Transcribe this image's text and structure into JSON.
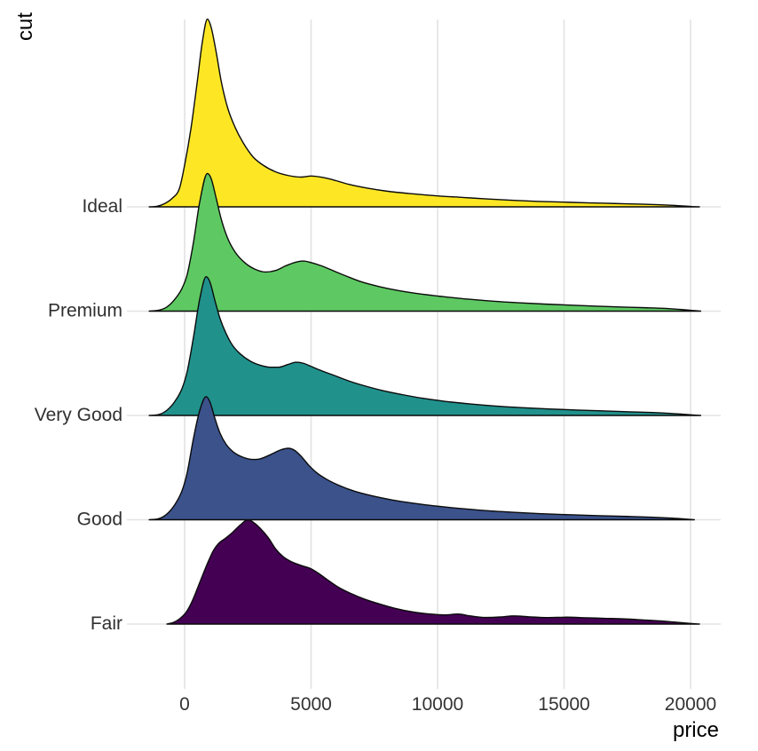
{
  "chart_data": {
    "type": "area",
    "variant": "ridgeline-density",
    "title": "",
    "xlabel": "price",
    "ylabel": "cut",
    "x_ticks": [
      0,
      5000,
      10000,
      15000,
      20000
    ],
    "x_tick_labels": [
      "0",
      "5000",
      "10000",
      "15000",
      "20000"
    ],
    "xlim": [
      -2280,
      21180
    ],
    "grid": "vertical-major-x-and-row-baselines",
    "legend": "none",
    "gridline_color": "#e3e3e3",
    "outline_color": "#0b0b0b",
    "categories": [
      "Ideal",
      "Premium",
      "Very Good",
      "Good",
      "Fair"
    ],
    "height_units": "multiples of row spacing",
    "series": [
      {
        "name": "Ideal",
        "fill": "#FDE725",
        "points": [
          [
            -1400,
            0
          ],
          [
            -1100,
            0.005
          ],
          [
            -800,
            0.03
          ],
          [
            -500,
            0.08
          ],
          [
            -200,
            0.18
          ],
          [
            0,
            0.4
          ],
          [
            250,
            0.75
          ],
          [
            500,
            1.2
          ],
          [
            700,
            1.58
          ],
          [
            900,
            1.8
          ],
          [
            1050,
            1.72
          ],
          [
            1250,
            1.48
          ],
          [
            1450,
            1.2
          ],
          [
            1700,
            0.95
          ],
          [
            2000,
            0.76
          ],
          [
            2300,
            0.62
          ],
          [
            2700,
            0.48
          ],
          [
            3100,
            0.4
          ],
          [
            3600,
            0.335
          ],
          [
            4100,
            0.3
          ],
          [
            4600,
            0.285
          ],
          [
            5000,
            0.295
          ],
          [
            5500,
            0.28
          ],
          [
            6000,
            0.25
          ],
          [
            6500,
            0.215
          ],
          [
            7200,
            0.18
          ],
          [
            8000,
            0.15
          ],
          [
            9000,
            0.125
          ],
          [
            10000,
            0.105
          ],
          [
            11000,
            0.09
          ],
          [
            12000,
            0.075
          ],
          [
            13000,
            0.062
          ],
          [
            14000,
            0.052
          ],
          [
            15000,
            0.045
          ],
          [
            16000,
            0.038
          ],
          [
            17000,
            0.032
          ],
          [
            18000,
            0.026
          ],
          [
            18800,
            0.02
          ],
          [
            19400,
            0.013
          ],
          [
            19900,
            0.006
          ],
          [
            20200,
            0.001
          ],
          [
            20350,
            0
          ]
        ]
      },
      {
        "name": "Premium",
        "fill": "#5EC962",
        "points": [
          [
            -1400,
            0
          ],
          [
            -1000,
            0.01
          ],
          [
            -700,
            0.04
          ],
          [
            -400,
            0.11
          ],
          [
            -100,
            0.22
          ],
          [
            100,
            0.35
          ],
          [
            350,
            0.66
          ],
          [
            600,
            1.05
          ],
          [
            900,
            1.32
          ],
          [
            1050,
            1.27
          ],
          [
            1250,
            1.08
          ],
          [
            1450,
            0.88
          ],
          [
            1700,
            0.7
          ],
          [
            2000,
            0.565
          ],
          [
            2400,
            0.46
          ],
          [
            2800,
            0.4
          ],
          [
            3200,
            0.375
          ],
          [
            3600,
            0.39
          ],
          [
            4000,
            0.435
          ],
          [
            4400,
            0.47
          ],
          [
            4700,
            0.48
          ],
          [
            5000,
            0.465
          ],
          [
            5400,
            0.435
          ],
          [
            5900,
            0.385
          ],
          [
            6400,
            0.335
          ],
          [
            7000,
            0.28
          ],
          [
            7700,
            0.235
          ],
          [
            8500,
            0.195
          ],
          [
            9300,
            0.165
          ],
          [
            10200,
            0.14
          ],
          [
            11200,
            0.115
          ],
          [
            12200,
            0.095
          ],
          [
            13200,
            0.08
          ],
          [
            14200,
            0.068
          ],
          [
            15200,
            0.058
          ],
          [
            16200,
            0.048
          ],
          [
            17200,
            0.04
          ],
          [
            18200,
            0.033
          ],
          [
            19000,
            0.026
          ],
          [
            19600,
            0.016
          ],
          [
            20100,
            0.006
          ],
          [
            20400,
            0
          ]
        ]
      },
      {
        "name": "Very Good",
        "fill": "#21918C",
        "points": [
          [
            -1400,
            0
          ],
          [
            -1000,
            0.01
          ],
          [
            -700,
            0.05
          ],
          [
            -400,
            0.13
          ],
          [
            -100,
            0.26
          ],
          [
            100,
            0.42
          ],
          [
            350,
            0.75
          ],
          [
            600,
            1.12
          ],
          [
            850,
            1.33
          ],
          [
            1000,
            1.28
          ],
          [
            1200,
            1.1
          ],
          [
            1400,
            0.93
          ],
          [
            1650,
            0.78
          ],
          [
            1900,
            0.67
          ],
          [
            2200,
            0.59
          ],
          [
            2600,
            0.52
          ],
          [
            3000,
            0.48
          ],
          [
            3400,
            0.462
          ],
          [
            3700,
            0.462
          ],
          [
            4100,
            0.49
          ],
          [
            4400,
            0.51
          ],
          [
            4700,
            0.5
          ],
          [
            5000,
            0.47
          ],
          [
            5400,
            0.43
          ],
          [
            5900,
            0.385
          ],
          [
            6500,
            0.33
          ],
          [
            7100,
            0.285
          ],
          [
            7800,
            0.24
          ],
          [
            8600,
            0.2
          ],
          [
            9400,
            0.165
          ],
          [
            10300,
            0.135
          ],
          [
            11300,
            0.11
          ],
          [
            12300,
            0.09
          ],
          [
            13300,
            0.075
          ],
          [
            14400,
            0.062
          ],
          [
            15500,
            0.052
          ],
          [
            16600,
            0.043
          ],
          [
            17600,
            0.035
          ],
          [
            18500,
            0.028
          ],
          [
            19200,
            0.02
          ],
          [
            19800,
            0.01
          ],
          [
            20200,
            0.003
          ],
          [
            20400,
            0
          ]
        ]
      },
      {
        "name": "Good",
        "fill": "#3B528B",
        "points": [
          [
            -1400,
            0
          ],
          [
            -1000,
            0.012
          ],
          [
            -700,
            0.055
          ],
          [
            -400,
            0.14
          ],
          [
            -100,
            0.28
          ],
          [
            100,
            0.45
          ],
          [
            350,
            0.78
          ],
          [
            600,
            1.05
          ],
          [
            850,
            1.18
          ],
          [
            1000,
            1.13
          ],
          [
            1200,
            0.97
          ],
          [
            1400,
            0.83
          ],
          [
            1650,
            0.72
          ],
          [
            1950,
            0.645
          ],
          [
            2300,
            0.6
          ],
          [
            2700,
            0.578
          ],
          [
            3000,
            0.585
          ],
          [
            3400,
            0.625
          ],
          [
            3800,
            0.67
          ],
          [
            4100,
            0.685
          ],
          [
            4350,
            0.665
          ],
          [
            4600,
            0.61
          ],
          [
            4900,
            0.525
          ],
          [
            5200,
            0.455
          ],
          [
            5600,
            0.39
          ],
          [
            6100,
            0.33
          ],
          [
            6700,
            0.275
          ],
          [
            7400,
            0.23
          ],
          [
            8200,
            0.19
          ],
          [
            9000,
            0.16
          ],
          [
            9900,
            0.132
          ],
          [
            10900,
            0.108
          ],
          [
            11900,
            0.088
          ],
          [
            12900,
            0.073
          ],
          [
            14000,
            0.059
          ],
          [
            15200,
            0.048
          ],
          [
            16400,
            0.039
          ],
          [
            17500,
            0.032
          ],
          [
            18400,
            0.025
          ],
          [
            19200,
            0.016
          ],
          [
            19800,
            0.007
          ],
          [
            20150,
            0
          ]
        ]
      },
      {
        "name": "Fair",
        "fill": "#440154",
        "points": [
          [
            -700,
            0
          ],
          [
            -450,
            0.015
          ],
          [
            -200,
            0.05
          ],
          [
            50,
            0.11
          ],
          [
            300,
            0.22
          ],
          [
            600,
            0.4
          ],
          [
            900,
            0.58
          ],
          [
            1150,
            0.71
          ],
          [
            1350,
            0.775
          ],
          [
            1600,
            0.82
          ],
          [
            1900,
            0.88
          ],
          [
            2200,
            0.95
          ],
          [
            2500,
            1.0
          ],
          [
            2750,
            0.97
          ],
          [
            3000,
            0.915
          ],
          [
            3300,
            0.83
          ],
          [
            3600,
            0.72
          ],
          [
            3900,
            0.645
          ],
          [
            4200,
            0.6
          ],
          [
            4600,
            0.562
          ],
          [
            5000,
            0.53
          ],
          [
            5300,
            0.485
          ],
          [
            5700,
            0.415
          ],
          [
            6100,
            0.35
          ],
          [
            6600,
            0.29
          ],
          [
            7100,
            0.24
          ],
          [
            7700,
            0.193
          ],
          [
            8300,
            0.152
          ],
          [
            9000,
            0.117
          ],
          [
            9700,
            0.096
          ],
          [
            10300,
            0.088
          ],
          [
            10800,
            0.096
          ],
          [
            11300,
            0.078
          ],
          [
            11900,
            0.063
          ],
          [
            12500,
            0.068
          ],
          [
            13000,
            0.078
          ],
          [
            13600,
            0.07
          ],
          [
            14300,
            0.062
          ],
          [
            15100,
            0.066
          ],
          [
            15900,
            0.06
          ],
          [
            16600,
            0.055
          ],
          [
            17400,
            0.049
          ],
          [
            18100,
            0.04
          ],
          [
            18800,
            0.03
          ],
          [
            19400,
            0.018
          ],
          [
            19900,
            0.008
          ],
          [
            20200,
            0.002
          ],
          [
            20350,
            0
          ]
        ]
      }
    ]
  }
}
